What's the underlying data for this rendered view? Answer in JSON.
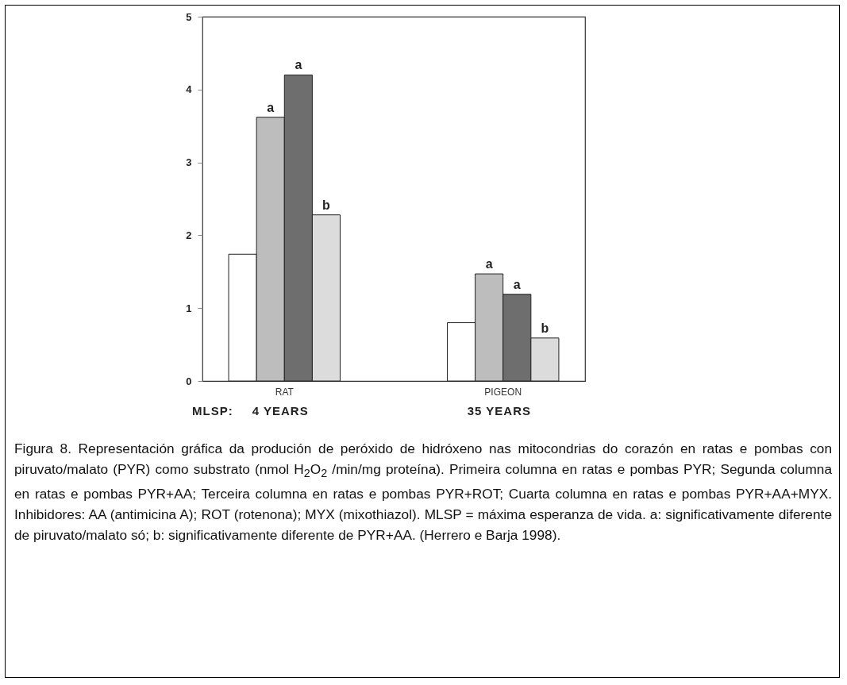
{
  "chart_data": {
    "type": "bar",
    "categories": [
      "RAT",
      "PIGEON"
    ],
    "series": [
      {
        "color": "#ffffff",
        "values": [
          1.74,
          0.8
        ]
      },
      {
        "color": "#bdbdbd",
        "values": [
          3.62,
          1.47
        ]
      },
      {
        "color": "#6e6e6e",
        "values": [
          4.2,
          1.19
        ]
      },
      {
        "color": "#dcdcdc",
        "values": [
          2.28,
          0.59
        ]
      }
    ],
    "ylim": [
      0,
      5
    ],
    "yticks": [
      0,
      1,
      2,
      3,
      4,
      5
    ],
    "grid": false,
    "legend": false,
    "annotations": [
      "MLSP:",
      "4 YEARS",
      "35 YEARS",
      {
        "text": "a",
        "x": "RAT",
        "y": 3.62
      },
      {
        "text": "a",
        "x": "RAT",
        "y": 4.2
      },
      {
        "text": "b",
        "x": "RAT",
        "y": 2.28
      },
      {
        "text": "a",
        "x": "PIGEON",
        "y": 1.47
      },
      {
        "text": "a",
        "x": "PIGEON",
        "y": 1.19
      },
      {
        "text": "b",
        "x": "PIGEON",
        "y": 0.59
      },
      "Figura 8. Representación gráfica da produción de peróxido de hidróxeno nas mitocondrias do corazón en ratas e pombas con piruvato/malato (PYR) como substrato (nmol H$_{2}$O$_{2}$ /min/mg proteína). Primeira columna en ratas e pombas PYR; Segunda columna en ratas e pombas PYR+AA; Terceira columna en ratas e pombas PYR+ROT; Cuarta columna en ratas e pombas PYR+AA+MYX. Inhibidores: AA (antimicina A); ROT (rotenona); MYX (mixothiazol). MLSP = máxima esperanza de vida. a: significativamente diferente de  piruvato/malato só; b: significativamente diferente de  PYR+AA. (Herrero e  Barja 1998)."
    ]
  }
}
